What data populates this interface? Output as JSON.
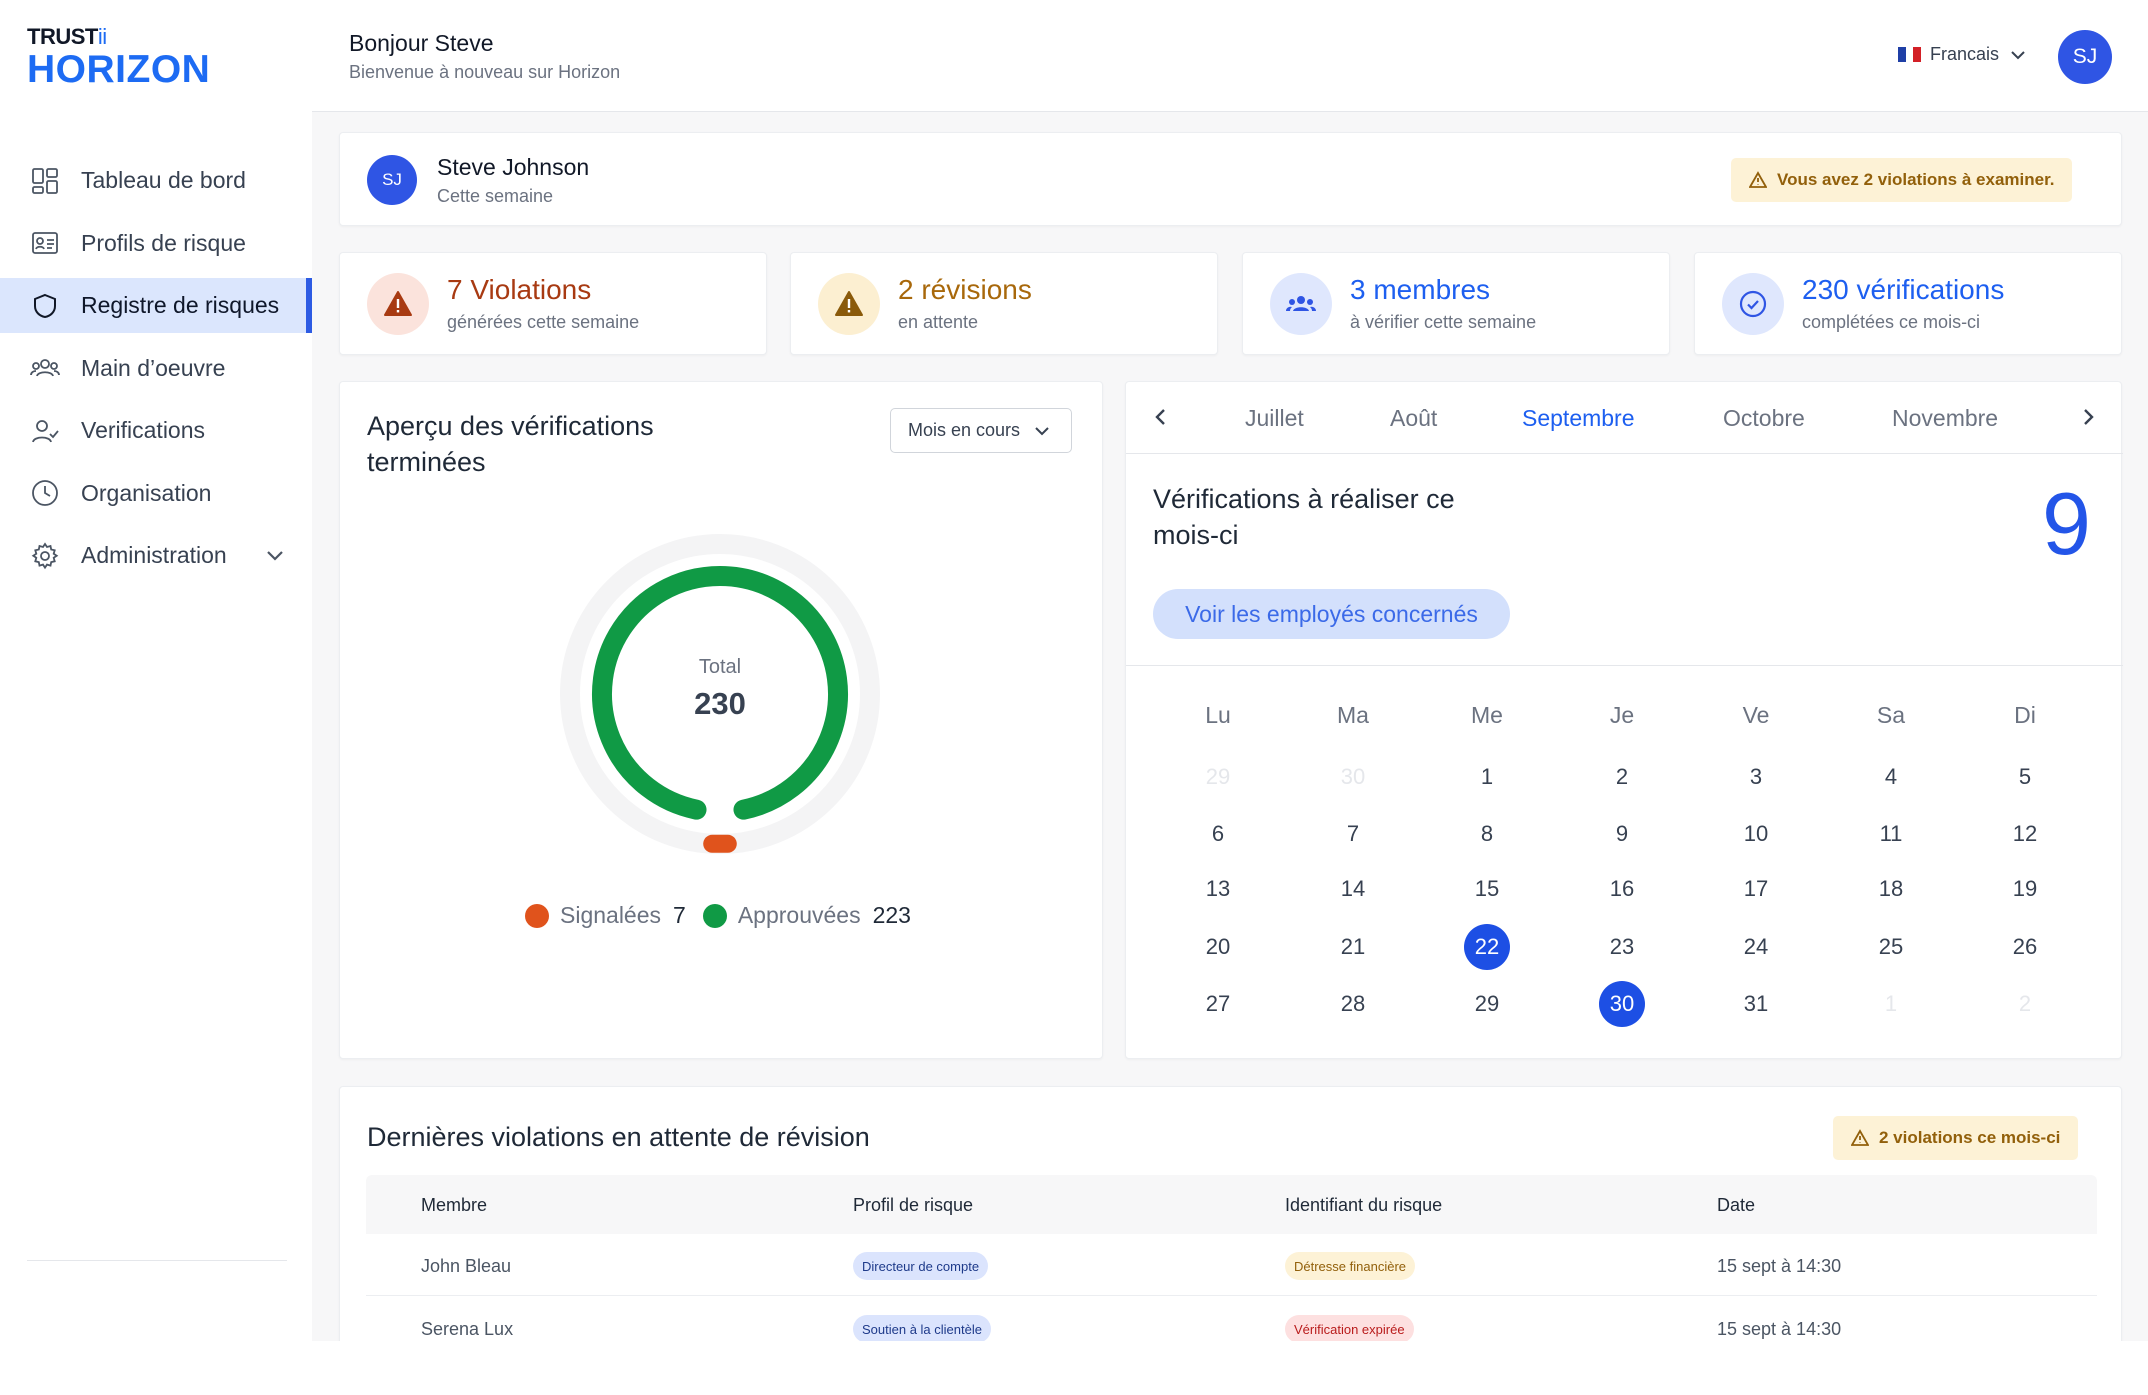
{
  "logo": {
    "top": "TRUST",
    "top_accent": "ii",
    "main": "HORIZON"
  },
  "sidebar": {
    "items": [
      {
        "label": "Tableau de bord",
        "icon": "grid-icon"
      },
      {
        "label": "Profils de risque",
        "icon": "id-card-icon"
      },
      {
        "label": "Registre de risques",
        "icon": "shield-icon",
        "active": true
      },
      {
        "label": "Main d’oeuvre",
        "icon": "users-icon"
      },
      {
        "label": "Verifications",
        "icon": "user-check-icon"
      },
      {
        "label": "Organisation",
        "icon": "clock-icon"
      },
      {
        "label": "Administration",
        "icon": "gear-icon",
        "expandable": true
      }
    ]
  },
  "header": {
    "greeting": "Bonjour Steve",
    "subtitle": "Bienvenue à nouveau sur Horizon",
    "language": "Francais",
    "avatar_initials": "SJ"
  },
  "user_card": {
    "initials": "SJ",
    "name": "Steve Johnson",
    "period": "Cette semaine",
    "alert": "Vous avez 2 violations à examiner."
  },
  "stats": [
    {
      "value": "7 Violations",
      "label": "générées cette semaine",
      "color": "#a83a12",
      "bg": "#fbe3dc",
      "icon": "warning-icon"
    },
    {
      "value": "2 révisions",
      "label": "en attente",
      "color": "#a8680b",
      "bg": "#fcefd1",
      "icon": "warning-icon"
    },
    {
      "value": "3 membres",
      "label": "à vérifier cette semaine",
      "color": "#1d5ff0",
      "bg": "#dfe7fd",
      "icon": "group-icon"
    },
    {
      "value": "230 vérifications",
      "label": "complétées ce mois-ci",
      "color": "#1d5ff0",
      "bg": "#dfe7fd",
      "icon": "check-circle-icon"
    }
  ],
  "overview": {
    "title": "Aperçu des vérifications terminées",
    "period_select": "Mois en cours",
    "total_label": "Total",
    "total_value": "230",
    "legend": [
      {
        "label": "Signalées",
        "value": "7",
        "color": "#e0531c"
      },
      {
        "label": "Approuvées",
        "value": "223",
        "color": "#109a45"
      }
    ]
  },
  "chart_data": {
    "type": "pie",
    "categories": [
      "Signalées",
      "Approuvées"
    ],
    "values": [
      7,
      223
    ],
    "title": "Aperçu des vérifications terminées"
  },
  "calendar": {
    "months": [
      "Juillet",
      "Août",
      "Septembre",
      "Octobre",
      "Novembre"
    ],
    "selected_month": "Septembre",
    "todo_title": "Vérifications à réaliser ce mois-ci",
    "todo_count": "9",
    "employees_button": "Voir les employés concernés",
    "weekdays": [
      "Lu",
      "Ma",
      "Me",
      "Je",
      "Ve",
      "Sa",
      "Di"
    ],
    "weeks": [
      [
        {
          "d": "29",
          "m": true
        },
        {
          "d": "30",
          "m": true
        },
        {
          "d": "1"
        },
        {
          "d": "2"
        },
        {
          "d": "3"
        },
        {
          "d": "4"
        },
        {
          "d": "5"
        }
      ],
      [
        {
          "d": "6"
        },
        {
          "d": "7"
        },
        {
          "d": "8"
        },
        {
          "d": "9"
        },
        {
          "d": "10"
        },
        {
          "d": "11"
        },
        {
          "d": "12"
        }
      ],
      [
        {
          "d": "13"
        },
        {
          "d": "14"
        },
        {
          "d": "15"
        },
        {
          "d": "16"
        },
        {
          "d": "17"
        },
        {
          "d": "18"
        },
        {
          "d": "19"
        }
      ],
      [
        {
          "d": "20"
        },
        {
          "d": "21"
        },
        {
          "d": "22",
          "h": true
        },
        {
          "d": "23"
        },
        {
          "d": "24"
        },
        {
          "d": "25"
        },
        {
          "d": "26"
        }
      ],
      [
        {
          "d": "27"
        },
        {
          "d": "28"
        },
        {
          "d": "29"
        },
        {
          "d": "30",
          "h": true
        },
        {
          "d": "31"
        },
        {
          "d": "1",
          "m": true
        },
        {
          "d": "2",
          "m": true
        }
      ]
    ]
  },
  "violations": {
    "title": "Dernières violations en attente de révision",
    "badge": "2 violations ce mois-ci",
    "columns": [
      "Membre",
      "Profil de risque",
      "Identifiant du risque",
      "Date"
    ],
    "rows": [
      {
        "member": "John Bleau",
        "profile": "Directeur de compte",
        "risk": "Détresse financière",
        "risk_color": "amber",
        "date": "15 sept à 14:30"
      },
      {
        "member": "Serena Lux",
        "profile": "Soutien à la clientèle",
        "risk": "Vérification expirée",
        "risk_color": "red",
        "date": "15 sept à 14:30"
      }
    ]
  }
}
